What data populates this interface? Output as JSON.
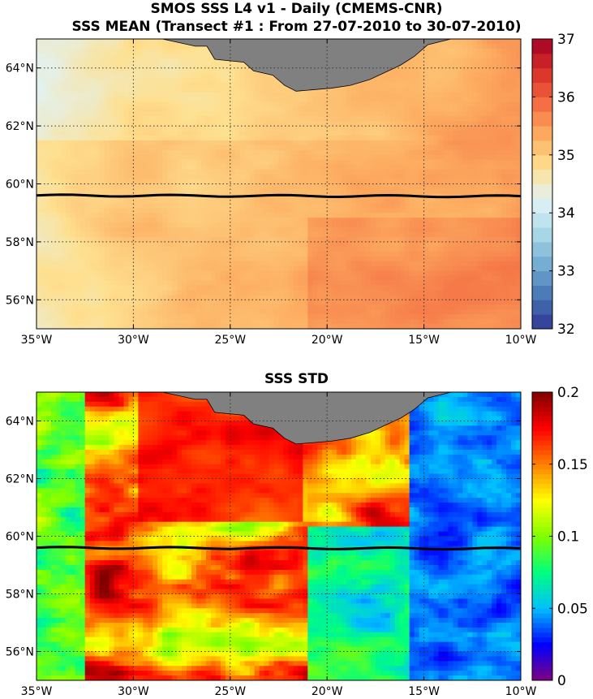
{
  "chart_data": [
    {
      "type": "heatmap",
      "title": "SMOS SSS L4 v1 - Daily (CMEMS-CNR)",
      "subtitle": "SSS MEAN (Transect #1 : From 27-07-2010 to 30-07-2010)",
      "x_ticks": [
        "35°W",
        "30°W",
        "25°W",
        "20°W",
        "15°W",
        "10°W"
      ],
      "y_ticks": [
        "56°N",
        "58°N",
        "60°N",
        "62°N",
        "64°N"
      ],
      "x_values": [
        -35,
        -30,
        -25,
        -20,
        -15,
        -10
      ],
      "y_values": [
        56,
        58,
        60,
        62,
        64
      ],
      "xlim": [
        -35,
        -10
      ],
      "ylim": [
        55,
        65
      ],
      "colorbar": {
        "range": [
          32,
          37
        ],
        "ticks": [
          32,
          33,
          34,
          35,
          36,
          37
        ],
        "colors": [
          "#313695",
          "#4575b4",
          "#74add1",
          "#abd9e9",
          "#e0f3f8",
          "#fee090",
          "#fdae61",
          "#f46d43",
          "#d73027",
          "#a50026"
        ]
      },
      "transect_lat": 59.6,
      "grid": true,
      "land_color": "#808080"
    },
    {
      "type": "heatmap",
      "title": "SSS STD",
      "x_ticks": [
        "35°W",
        "30°W",
        "25°W",
        "20°W",
        "15°W",
        "10°W"
      ],
      "y_ticks": [
        "56°N",
        "58°N",
        "60°N",
        "62°N",
        "64°N"
      ],
      "x_values": [
        -35,
        -30,
        -25,
        -20,
        -15,
        -10
      ],
      "y_values": [
        56,
        58,
        60,
        62,
        64
      ],
      "xlim": [
        -35,
        -10
      ],
      "ylim": [
        55,
        65
      ],
      "colorbar": {
        "range": [
          0,
          0.2
        ],
        "ticks": [
          0,
          0.05,
          0.1,
          0.15,
          0.2
        ],
        "tick_labels": [
          "0",
          "0.05",
          "0.1",
          "0.15",
          "0.2"
        ],
        "colors": [
          "#7f007f",
          "#0000ff",
          "#00bfff",
          "#00ff7f",
          "#7fff00",
          "#ffff00",
          "#ff7f00",
          "#ff0000",
          "#7f0000"
        ]
      },
      "transect_lat": 59.6,
      "grid": true,
      "land_color": "#808080"
    }
  ]
}
